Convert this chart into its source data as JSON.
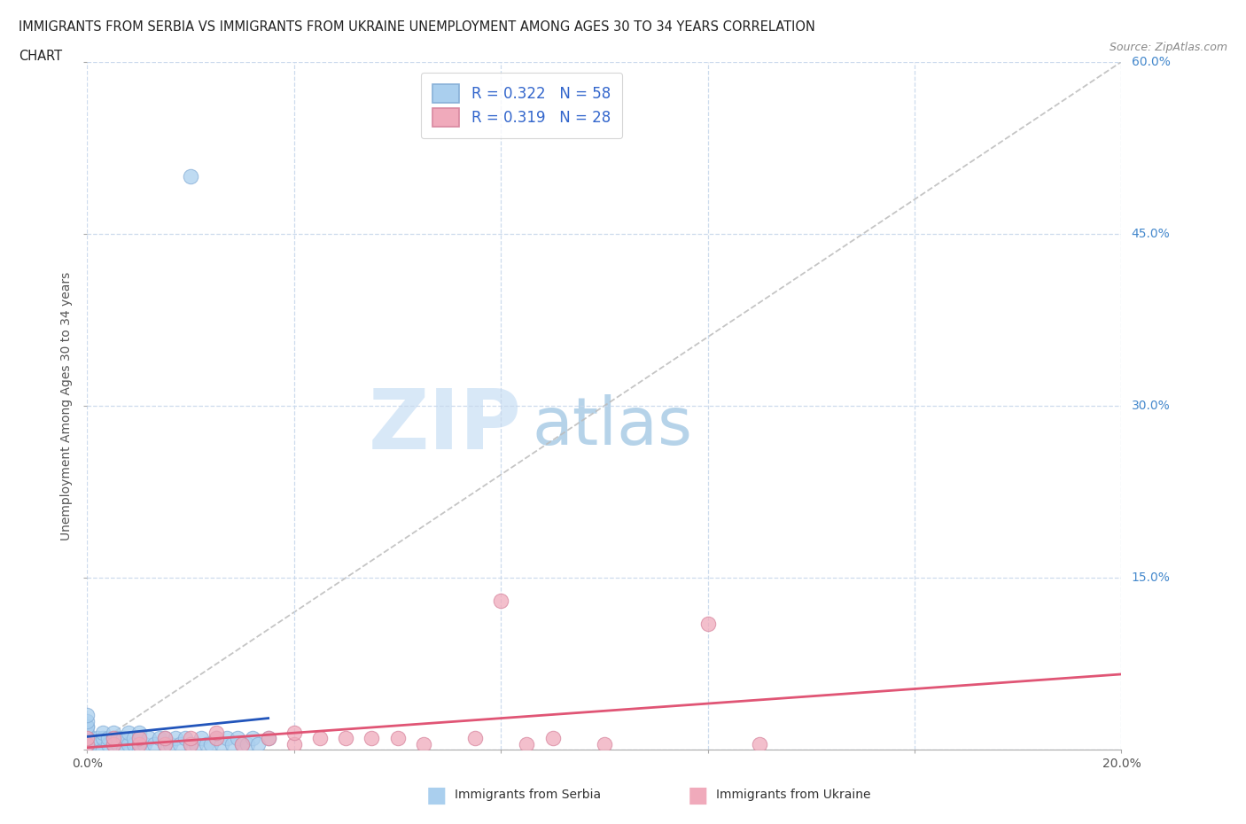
{
  "title_line1": "IMMIGRANTS FROM SERBIA VS IMMIGRANTS FROM UKRAINE UNEMPLOYMENT AMONG AGES 30 TO 34 YEARS CORRELATION",
  "title_line2": "CHART",
  "source": "Source: ZipAtlas.com",
  "ylabel": "Unemployment Among Ages 30 to 34 years",
  "xlim": [
    0.0,
    0.2
  ],
  "ylim": [
    0.0,
    0.6
  ],
  "xticks": [
    0.0,
    0.04,
    0.08,
    0.12,
    0.16,
    0.2
  ],
  "yticks": [
    0.0,
    0.15,
    0.3,
    0.45,
    0.6
  ],
  "xtick_labels_show": [
    "0.0%",
    "",
    "",
    "",
    "",
    "20.0%"
  ],
  "ytick_labels_right": [
    "",
    "15.0%",
    "30.0%",
    "45.0%",
    "60.0%"
  ],
  "serbia_color": "#aacfee",
  "serbia_edge_color": "#88b0d8",
  "ukraine_color": "#f0aabb",
  "ukraine_edge_color": "#d888a0",
  "serbia_line_color": "#2255bb",
  "ukraine_line_color": "#e05575",
  "ref_line_color": "#bbbbbb",
  "legend_serbia_R": "0.322",
  "legend_serbia_N": "58",
  "legend_ukraine_R": "0.319",
  "legend_ukraine_N": "28",
  "watermark_zip": "ZIP",
  "watermark_atlas": "atlas",
  "serbia_scatter_x": [
    0.0,
    0.0,
    0.0,
    0.0,
    0.0,
    0.0,
    0.0,
    0.0,
    0.0,
    0.0,
    0.002,
    0.002,
    0.003,
    0.003,
    0.003,
    0.004,
    0.004,
    0.005,
    0.005,
    0.005,
    0.006,
    0.006,
    0.007,
    0.007,
    0.008,
    0.008,
    0.009,
    0.009,
    0.01,
    0.01,
    0.01,
    0.01,
    0.011,
    0.012,
    0.013,
    0.014,
    0.015,
    0.015,
    0.016,
    0.017,
    0.018,
    0.019,
    0.02,
    0.021,
    0.022,
    0.023,
    0.024,
    0.025,
    0.026,
    0.027,
    0.028,
    0.029,
    0.03,
    0.031,
    0.032,
    0.033,
    0.035,
    0.02
  ],
  "serbia_scatter_y": [
    0.0,
    0.005,
    0.005,
    0.01,
    0.01,
    0.015,
    0.02,
    0.02,
    0.025,
    0.03,
    0.005,
    0.01,
    0.0,
    0.01,
    0.015,
    0.005,
    0.01,
    0.005,
    0.01,
    0.015,
    0.005,
    0.01,
    0.0,
    0.01,
    0.005,
    0.015,
    0.005,
    0.01,
    0.0,
    0.005,
    0.01,
    0.015,
    0.005,
    0.01,
    0.005,
    0.01,
    0.005,
    0.01,
    0.005,
    0.01,
    0.005,
    0.01,
    0.005,
    0.005,
    0.01,
    0.005,
    0.005,
    0.01,
    0.005,
    0.01,
    0.005,
    0.01,
    0.005,
    0.005,
    0.01,
    0.005,
    0.01,
    0.5
  ],
  "ukraine_scatter_x": [
    0.0,
    0.0,
    0.005,
    0.005,
    0.01,
    0.01,
    0.015,
    0.015,
    0.02,
    0.02,
    0.025,
    0.025,
    0.03,
    0.035,
    0.04,
    0.04,
    0.045,
    0.05,
    0.055,
    0.06,
    0.065,
    0.075,
    0.08,
    0.085,
    0.09,
    0.1,
    0.12,
    0.13
  ],
  "ukraine_scatter_y": [
    0.005,
    0.01,
    0.005,
    0.01,
    0.005,
    0.01,
    0.005,
    0.01,
    0.005,
    0.01,
    0.01,
    0.015,
    0.005,
    0.01,
    0.005,
    0.015,
    0.01,
    0.01,
    0.01,
    0.01,
    0.005,
    0.01,
    0.13,
    0.005,
    0.01,
    0.005,
    0.11,
    0.005
  ]
}
